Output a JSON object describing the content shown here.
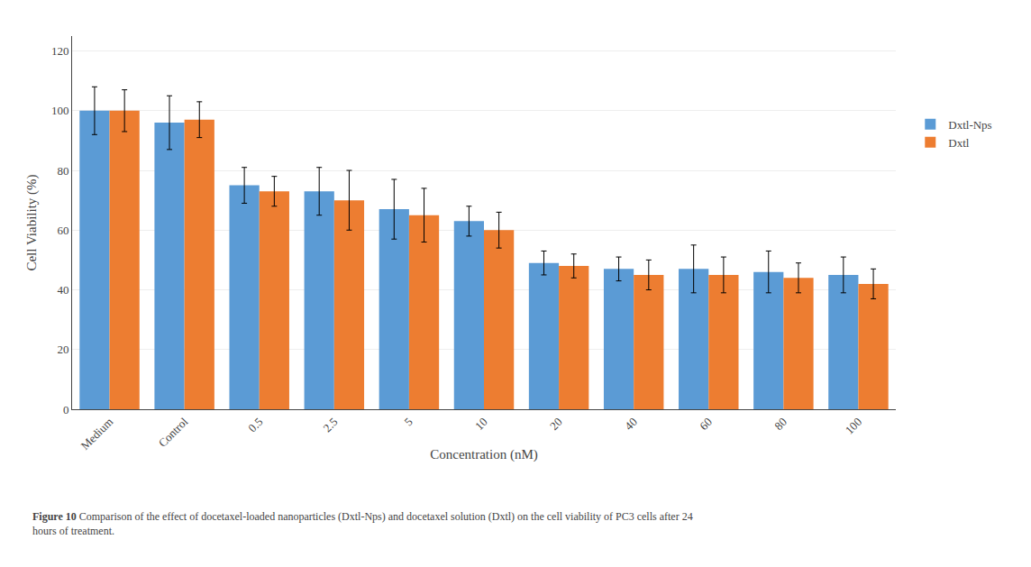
{
  "chart_data": {
    "type": "bar",
    "xlabel": "Concentration (nM)",
    "ylabel": "Cell Viability (%)",
    "categories": [
      "Medium",
      "Control",
      "0.5",
      "2.5",
      "5",
      "10",
      "20",
      "40",
      "60",
      "80",
      "100"
    ],
    "series": [
      {
        "name": "Dxtl-Nps",
        "color": "#5B9BD5",
        "values": [
          100,
          96,
          75,
          73,
          67,
          63,
          49,
          47,
          47,
          46,
          45
        ],
        "errors": [
          8,
          9,
          6,
          8,
          10,
          5,
          4,
          4,
          8,
          7,
          6
        ]
      },
      {
        "name": "Dxtl",
        "color": "#ED7D31",
        "values": [
          100,
          97,
          73,
          70,
          65,
          60,
          48,
          45,
          45,
          44,
          42
        ],
        "errors": [
          7,
          6,
          5,
          10,
          9,
          6,
          4,
          5,
          6,
          5,
          5
        ]
      }
    ],
    "ylim": [
      0,
      125
    ],
    "yticks": [
      0,
      20,
      40,
      60,
      80,
      100,
      120
    ],
    "grid": true,
    "legend": "right",
    "annotations": [
      "Figure 10",
      " Comparison of the effect of docetaxel-loaded nanoparticles (Dxtl-Nps) and docetaxel solution (Dxtl) on the cell viability of PC3 cells after 24\nhours of treatment."
    ]
  }
}
